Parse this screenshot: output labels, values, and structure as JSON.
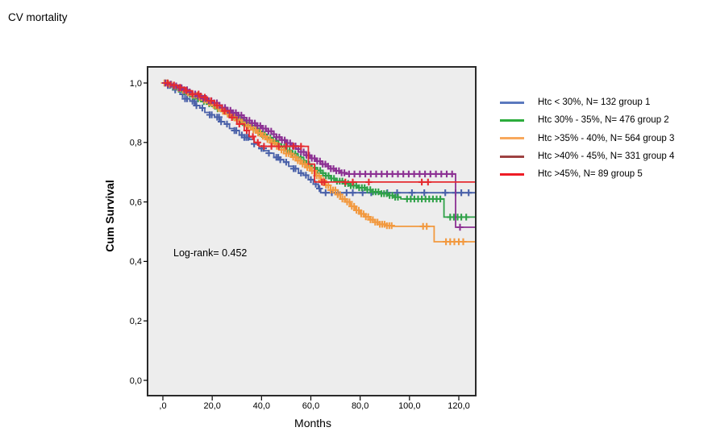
{
  "title": "CV mortality",
  "chart_data": {
    "type": "line",
    "subtype": "kaplan-meier-step",
    "title": "CV mortality",
    "xlabel": "Months",
    "ylabel": "Cum Survival",
    "annotation": "Log-rank= 0.452",
    "xlim": [
      0,
      127
    ],
    "ylim": [
      -0.05,
      1.05
    ],
    "grid": false,
    "legend_position": "right",
    "plot_background": "#EDEDED",
    "frame_color": "#2A2A2A",
    "xticks": [
      {
        "v": 0,
        "label": ",0"
      },
      {
        "v": 20,
        "label": "20,0"
      },
      {
        "v": 40,
        "label": "40,0"
      },
      {
        "v": 60,
        "label": "60,0"
      },
      {
        "v": 80,
        "label": "80,0"
      },
      {
        "v": 100,
        "label": "100,0"
      },
      {
        "v": 120,
        "label": "120,0"
      }
    ],
    "yticks": [
      {
        "v": 0.0,
        "label": "0,0"
      },
      {
        "v": 0.2,
        "label": "0,2"
      },
      {
        "v": 0.4,
        "label": "0,4"
      },
      {
        "v": 0.6,
        "label": "0,6"
      },
      {
        "v": 0.8,
        "label": "0,8"
      },
      {
        "v": 1.0,
        "label": "1,0"
      }
    ],
    "series": [
      {
        "name": "Htc < 30%, N= 132 group 1",
        "color": "#4A61A9",
        "legend_color": "#5B79BE",
        "points": [
          [
            0,
            1
          ],
          [
            1,
            0.992
          ],
          [
            3,
            0.985
          ],
          [
            5,
            0.977
          ],
          [
            7,
            0.962
          ],
          [
            9,
            0.947
          ],
          [
            11,
            0.939
          ],
          [
            13,
            0.924
          ],
          [
            15,
            0.916
          ],
          [
            17,
            0.901
          ],
          [
            19,
            0.893
          ],
          [
            21,
            0.885
          ],
          [
            23,
            0.87
          ],
          [
            25,
            0.862
          ],
          [
            27,
            0.847
          ],
          [
            29,
            0.84
          ],
          [
            31,
            0.825
          ],
          [
            33,
            0.817
          ],
          [
            35,
            0.81
          ],
          [
            37,
            0.795
          ],
          [
            39,
            0.78
          ],
          [
            41,
            0.772
          ],
          [
            43,
            0.764
          ],
          [
            45,
            0.75
          ],
          [
            47,
            0.742
          ],
          [
            49,
            0.734
          ],
          [
            51,
            0.72
          ],
          [
            53,
            0.712
          ],
          [
            55,
            0.697
          ],
          [
            57,
            0.69
          ],
          [
            59,
            0.675
          ],
          [
            61,
            0.66
          ],
          [
            63,
            0.645
          ],
          [
            64,
            0.631
          ],
          [
            127,
            0.631
          ]
        ],
        "censors": [
          2,
          2.8,
          5,
          8,
          9,
          9.8,
          12,
          12.8,
          13.6,
          16,
          19,
          19.8,
          22,
          22.8,
          23.6,
          26,
          29,
          29.8,
          32,
          33,
          33.8,
          34.6,
          37,
          40,
          40.8,
          43,
          46,
          46.8,
          47.6,
          50,
          53,
          53.8,
          56,
          58,
          60,
          62,
          63.5,
          66,
          68.5,
          71,
          74.5,
          77,
          81,
          84.5,
          91,
          95,
          101,
          106,
          114.5,
          118.7,
          121,
          124
        ]
      },
      {
        "name": "Htc 30% - 35%, N= 476 group 2",
        "color": "#2FA148",
        "legend_color": "#2CAC3C",
        "points": [
          [
            0,
            1
          ],
          [
            2,
            0.994
          ],
          [
            4,
            0.987
          ],
          [
            6,
            0.979
          ],
          [
            8,
            0.971
          ],
          [
            10,
            0.963
          ],
          [
            12,
            0.955
          ],
          [
            14,
            0.947
          ],
          [
            16,
            0.938
          ],
          [
            18,
            0.93
          ],
          [
            20,
            0.922
          ],
          [
            22,
            0.913
          ],
          [
            24,
            0.905
          ],
          [
            26,
            0.896
          ],
          [
            28,
            0.886
          ],
          [
            30,
            0.877
          ],
          [
            32,
            0.867
          ],
          [
            34,
            0.857
          ],
          [
            36,
            0.847
          ],
          [
            38,
            0.837
          ],
          [
            40,
            0.827
          ],
          [
            42,
            0.816
          ],
          [
            44,
            0.806
          ],
          [
            46,
            0.795
          ],
          [
            48,
            0.784
          ],
          [
            50,
            0.773
          ],
          [
            52,
            0.762
          ],
          [
            54,
            0.75
          ],
          [
            56,
            0.739
          ],
          [
            58,
            0.727
          ],
          [
            60,
            0.715
          ],
          [
            62,
            0.706
          ],
          [
            64,
            0.697
          ],
          [
            66,
            0.688
          ],
          [
            68,
            0.679
          ],
          [
            70,
            0.67
          ],
          [
            73,
            0.662
          ],
          [
            76,
            0.655
          ],
          [
            79,
            0.648
          ],
          [
            82,
            0.641
          ],
          [
            85,
            0.634
          ],
          [
            88,
            0.628
          ],
          [
            91,
            0.622
          ],
          [
            94,
            0.616
          ],
          [
            96.5,
            0.61
          ],
          [
            114,
            0.549
          ],
          [
            127,
            0.549
          ]
        ],
        "censors": [
          0.8,
          1.9,
          3.1,
          4.2,
          5.3,
          6.4,
          7.6,
          8.7,
          9.8,
          10.9,
          12.1,
          13.2,
          14.3,
          15.4,
          16.6,
          17.7,
          18.8,
          19.9,
          21.1,
          22.2,
          23.3,
          24.4,
          25.6,
          26.7,
          27.8,
          28.9,
          30.1,
          31.2,
          32.3,
          33.4,
          34.6,
          35.7,
          36.8,
          37.9,
          39.1,
          40.2,
          41.3,
          42.4,
          43.6,
          44.7,
          45.8,
          46.9,
          48.1,
          49.2,
          50.3,
          51.4,
          52.6,
          53.7,
          54.8,
          55.9,
          57.1,
          58.2,
          59.3,
          60.4,
          61.6,
          62.7,
          63.8,
          64.9,
          66.1,
          67.2,
          68.3,
          69.4,
          70.6,
          71.7,
          72.8,
          73.9,
          75.1,
          76.2,
          77.3,
          78.4,
          79.6,
          80.7,
          81.8,
          82.9,
          84.1,
          85.2,
          86.3,
          87.4,
          88.6,
          89.7,
          90.8,
          91.9,
          93.1,
          94.2,
          95.3,
          99,
          100.5,
          102,
          103.5,
          105,
          106.5,
          108,
          109.5,
          111,
          112.5,
          116.5,
          118,
          119.5,
          121,
          123
        ]
      },
      {
        "name": "Htc >35% - 40%, N= 564 group 3",
        "color": "#F2993F",
        "legend_color": "#F8A85C",
        "points": [
          [
            0,
            1
          ],
          [
            2,
            0.995
          ],
          [
            4,
            0.989
          ],
          [
            6,
            0.982
          ],
          [
            8,
            0.975
          ],
          [
            10,
            0.967
          ],
          [
            12,
            0.959
          ],
          [
            14,
            0.951
          ],
          [
            16,
            0.943
          ],
          [
            18,
            0.934
          ],
          [
            20,
            0.925
          ],
          [
            22,
            0.915
          ],
          [
            24,
            0.905
          ],
          [
            26,
            0.895
          ],
          [
            28,
            0.885
          ],
          [
            30,
            0.874
          ],
          [
            32,
            0.864
          ],
          [
            34,
            0.853
          ],
          [
            36,
            0.843
          ],
          [
            38,
            0.832
          ],
          [
            40,
            0.821
          ],
          [
            42,
            0.81
          ],
          [
            44,
            0.799
          ],
          [
            46,
            0.787
          ],
          [
            48,
            0.775
          ],
          [
            50,
            0.763
          ],
          [
            52,
            0.751
          ],
          [
            54,
            0.739
          ],
          [
            56,
            0.728
          ],
          [
            58,
            0.716
          ],
          [
            60,
            0.705
          ],
          [
            62,
            0.688
          ],
          [
            64,
            0.672
          ],
          [
            66,
            0.656
          ],
          [
            68,
            0.64
          ],
          [
            70,
            0.625
          ],
          [
            72,
            0.61
          ],
          [
            74,
            0.6
          ],
          [
            76,
            0.585
          ],
          [
            78,
            0.572
          ],
          [
            80,
            0.56
          ],
          [
            82,
            0.55
          ],
          [
            84,
            0.54
          ],
          [
            86,
            0.532
          ],
          [
            88,
            0.525
          ],
          [
            90,
            0.52
          ],
          [
            93,
            0.518
          ],
          [
            110,
            0.466
          ],
          [
            127,
            0.466
          ]
        ],
        "censors": [
          0.6,
          1.55,
          2.5,
          3.45,
          4.4,
          5.35,
          6.3,
          7.25,
          8.2,
          9.15,
          10.1,
          11.05,
          12,
          12.95,
          13.9,
          14.85,
          15.8,
          16.75,
          17.7,
          18.65,
          19.6,
          20.55,
          21.5,
          22.45,
          23.4,
          24.35,
          25.3,
          26.25,
          27.2,
          28.15,
          29.1,
          30.05,
          31,
          31.95,
          32.9,
          33.85,
          34.8,
          35.75,
          36.7,
          37.65,
          38.6,
          39.55,
          40.5,
          41.45,
          42.4,
          43.35,
          44.3,
          45.25,
          46.2,
          47.15,
          48.1,
          49.05,
          50,
          50.95,
          51.9,
          52.85,
          53.8,
          54.75,
          55.7,
          56.65,
          57.6,
          58.55,
          59.5,
          60.45,
          61.4,
          62.35,
          63.3,
          64.25,
          65.2,
          66.15,
          67.1,
          68.05,
          69,
          69.95,
          70.9,
          71.85,
          72.8,
          73.75,
          74.7,
          75.65,
          76.6,
          77.55,
          78.5,
          79.45,
          80.4,
          81.35,
          82.3,
          83.25,
          84.2,
          85.15,
          86.1,
          87.05,
          88,
          88.95,
          89.9,
          90.85,
          91.8,
          92.75,
          105.5,
          107,
          114.8,
          116.5,
          118.2,
          120,
          121.8
        ]
      },
      {
        "name": "Htc >40% - 45%, N= 331 group 4",
        "color": "#8C3193",
        "legend_color": "#9E4242",
        "points": [
          [
            0,
            1
          ],
          [
            2,
            0.996
          ],
          [
            4,
            0.99
          ],
          [
            6,
            0.984
          ],
          [
            8,
            0.977
          ],
          [
            10,
            0.97
          ],
          [
            12,
            0.963
          ],
          [
            14,
            0.956
          ],
          [
            16,
            0.948
          ],
          [
            18,
            0.94
          ],
          [
            20,
            0.933
          ],
          [
            22,
            0.925
          ],
          [
            24,
            0.917
          ],
          [
            26,
            0.908
          ],
          [
            28,
            0.9
          ],
          [
            30,
            0.892
          ],
          [
            32,
            0.883
          ],
          [
            34,
            0.874
          ],
          [
            36,
            0.865
          ],
          [
            38,
            0.856
          ],
          [
            40,
            0.847
          ],
          [
            42,
            0.838
          ],
          [
            44,
            0.828
          ],
          [
            46,
            0.818
          ],
          [
            48,
            0.808
          ],
          [
            50,
            0.798
          ],
          [
            52,
            0.788
          ],
          [
            54,
            0.778
          ],
          [
            56,
            0.768
          ],
          [
            58,
            0.757
          ],
          [
            60,
            0.747
          ],
          [
            62,
            0.737
          ],
          [
            64,
            0.727
          ],
          [
            66,
            0.72
          ],
          [
            68,
            0.712
          ],
          [
            70,
            0.705
          ],
          [
            72,
            0.698
          ],
          [
            74,
            0.694
          ],
          [
            118.7,
            0.515
          ],
          [
            127,
            0.515
          ]
        ],
        "censors": [
          1,
          2.1,
          3.2,
          4.3,
          5.4,
          6.5,
          7.6,
          8.7,
          9.8,
          10.9,
          12,
          13.1,
          14.2,
          15.3,
          16.4,
          17.5,
          18.6,
          19.7,
          20.8,
          21.9,
          23,
          24.1,
          25.2,
          26.3,
          27.4,
          28.5,
          29.6,
          30.7,
          31.8,
          32.9,
          34,
          35.1,
          36.2,
          37.3,
          38.4,
          39.5,
          40.6,
          41.7,
          42.8,
          43.9,
          45,
          46.1,
          47.2,
          48.3,
          49.4,
          50.5,
          51.6,
          52.7,
          53.8,
          54.9,
          56,
          57.1,
          58.2,
          59.3,
          60.4,
          61.5,
          62.6,
          63.7,
          64.8,
          65.9,
          67,
          68.1,
          69.2,
          70.3,
          71.4,
          72.5,
          73.6,
          75.5,
          77.7,
          79.9,
          82.1,
          84.3,
          86.5,
          88.7,
          90.9,
          93.1,
          95.3,
          97.5,
          99.7,
          101.9,
          104.1,
          106.3,
          108.5,
          110.7,
          112.9,
          115.1,
          117.3,
          120.5
        ]
      },
      {
        "name": "Htc >45%, N= 89 group 5",
        "color": "#E52B30",
        "legend_color": "#EE1C25",
        "points": [
          [
            0,
            1
          ],
          [
            3,
            0.993
          ],
          [
            6,
            0.985
          ],
          [
            9,
            0.974
          ],
          [
            12,
            0.963
          ],
          [
            15,
            0.952
          ],
          [
            18,
            0.94
          ],
          [
            21,
            0.925
          ],
          [
            24,
            0.906
          ],
          [
            27,
            0.884
          ],
          [
            30,
            0.862
          ],
          [
            33,
            0.84
          ],
          [
            35,
            0.82
          ],
          [
            37,
            0.8
          ],
          [
            39,
            0.787
          ],
          [
            59,
            0.727
          ],
          [
            61.5,
            0.667
          ],
          [
            127,
            0.667
          ]
        ],
        "censors": [
          2,
          4.5,
          7,
          9.5,
          12,
          14.5,
          17,
          19.5,
          22,
          25,
          28,
          31,
          34,
          36.5,
          38.5,
          41,
          44,
          47,
          50,
          53,
          56,
          64.5,
          65.5,
          74,
          77,
          83.5,
          105,
          107.5
        ]
      }
    ]
  }
}
